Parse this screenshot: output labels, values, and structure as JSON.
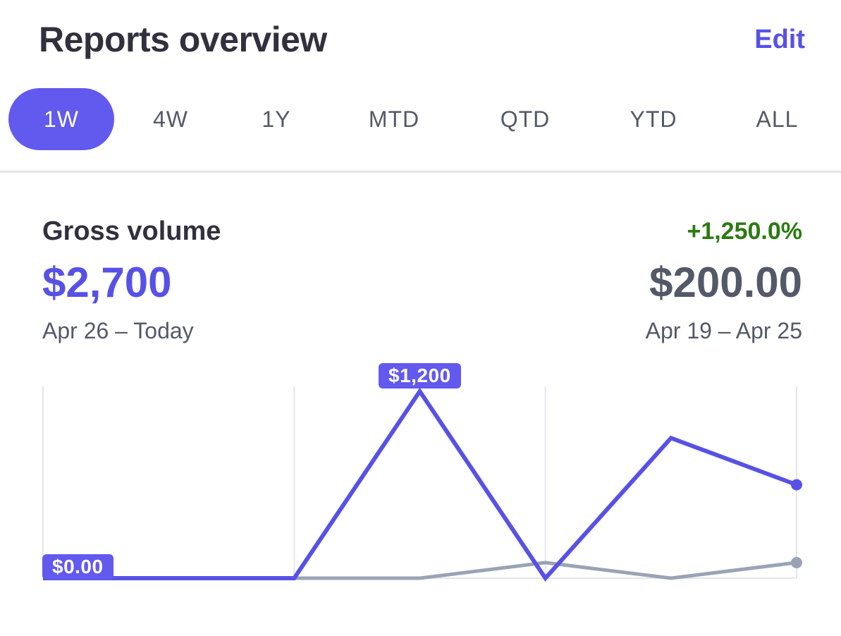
{
  "header": {
    "title": "Reports overview",
    "edit_label": "Edit"
  },
  "tabs": [
    {
      "label": "1W",
      "active": true
    },
    {
      "label": "4W",
      "active": false
    },
    {
      "label": "1Y",
      "active": false
    },
    {
      "label": "MTD",
      "active": false
    },
    {
      "label": "QTD",
      "active": false
    },
    {
      "label": "YTD",
      "active": false
    },
    {
      "label": "ALL",
      "active": false
    }
  ],
  "metric": {
    "label": "Gross volume",
    "change": "+1,250.0%",
    "current_value": "$2,700",
    "previous_value": "$200.00",
    "current_range": "Apr 26 – Today",
    "previous_range": "Apr 19 – Apr 25"
  },
  "colors": {
    "accent": "#5851e6",
    "accent_fill": "#6259ee",
    "positive": "#2b7a12",
    "comparison_line": "#9aa3b5",
    "gridline": "#e3e6eb"
  },
  "chart_data": {
    "type": "line",
    "x": [
      0,
      1,
      2,
      3,
      4,
      5,
      6
    ],
    "ylim": [
      0,
      1200
    ],
    "series": [
      {
        "values": [
          0,
          0,
          0,
          1200,
          0,
          900,
          600
        ],
        "current": true
      },
      {
        "values": [
          0,
          0,
          0,
          0,
          100,
          0,
          100
        ],
        "current": false
      }
    ],
    "annotations": [
      {
        "label": "$1,200",
        "x": 3,
        "series": 0
      },
      {
        "label": "$0.00",
        "x": 0,
        "series": 0
      }
    ]
  }
}
